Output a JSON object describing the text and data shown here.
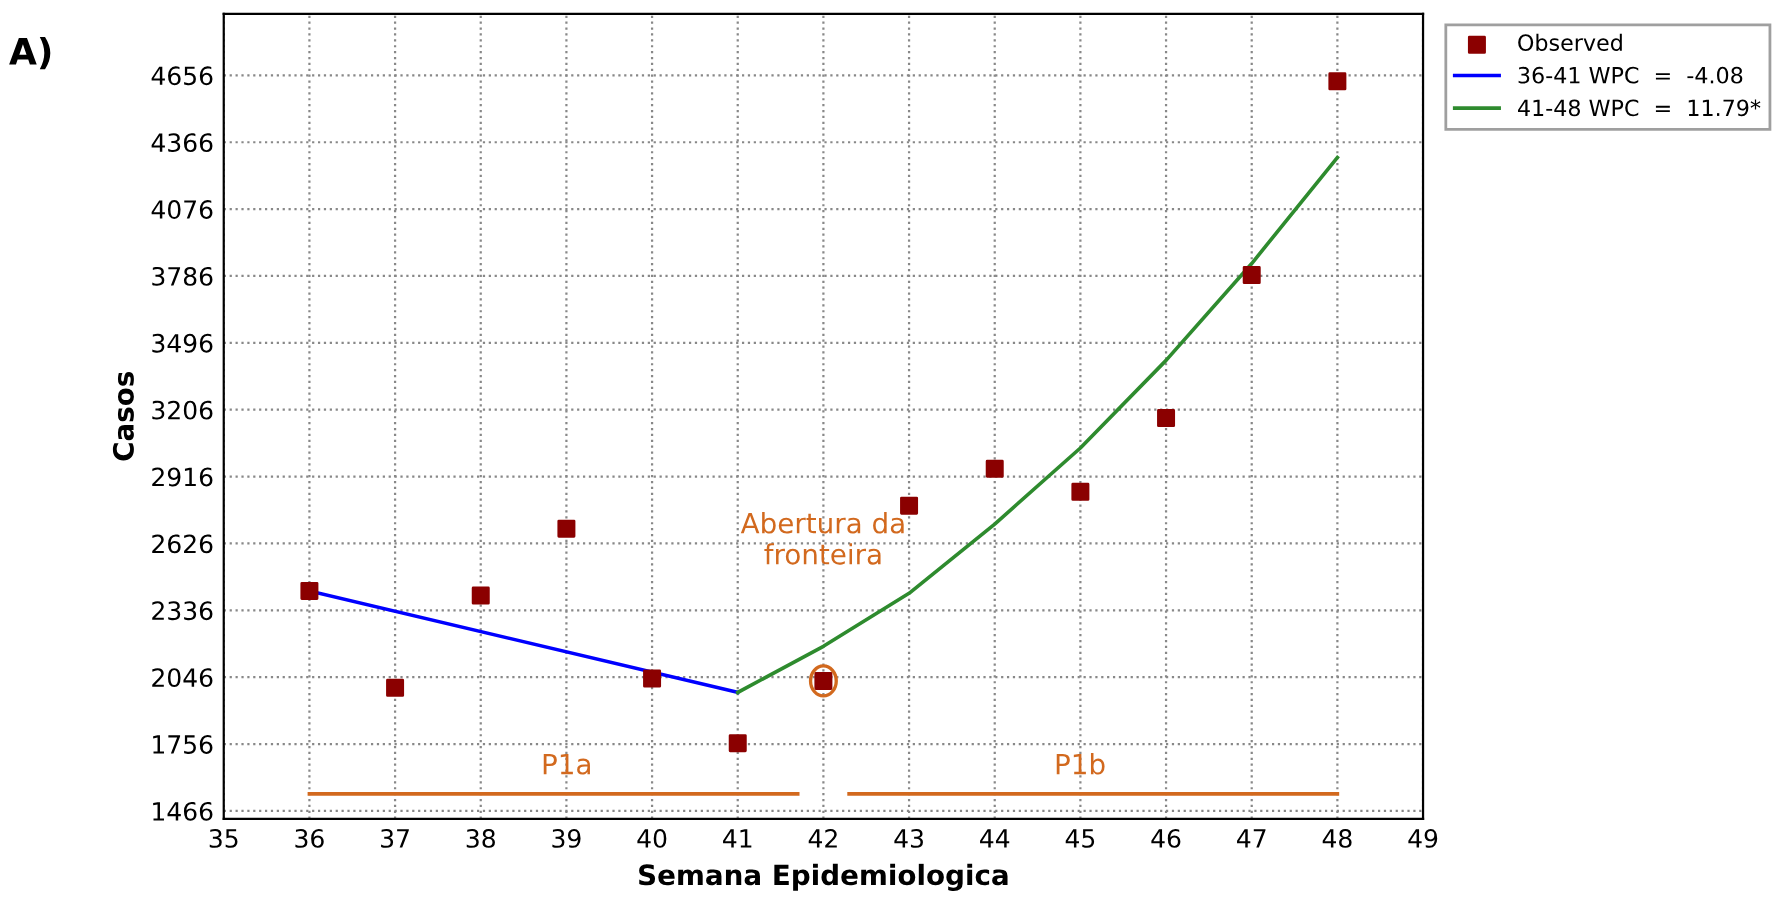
{
  "chart_data": {
    "type": "scatter",
    "title": "A)",
    "xlabel": "Semana Epidemiologica",
    "ylabel": "Casos",
    "xlim": [
      35,
      49
    ],
    "xticks": [
      35,
      36,
      37,
      38,
      39,
      40,
      41,
      42,
      43,
      44,
      45,
      46,
      47,
      48,
      49
    ],
    "ylim": [
      1432,
      4923
    ],
    "yticks": [
      1466,
      1756,
      2046,
      2336,
      2626,
      2916,
      3206,
      3496,
      3786,
      4076,
      4366,
      4656
    ],
    "grid": true,
    "legend": "top right",
    "marker": "square",
    "series": [
      {
        "name": "Observed",
        "color": "#8b0000",
        "x": [
          36,
          37,
          38,
          39,
          40,
          41,
          42,
          43,
          44,
          45,
          46,
          47,
          48
        ],
        "values": [
          2420,
          2000,
          2400,
          2690,
          2040,
          1760,
          2030,
          2790,
          2950,
          2850,
          3170,
          3790,
          4630
        ]
      },
      {
        "name": "36-41 WPC  =  -4.08",
        "type": "line",
        "color": "#0000ff",
        "marker": "none",
        "x": [
          36,
          41
        ],
        "values": [
          2420,
          1980
        ]
      },
      {
        "name": "41-48 WPC  =  11.79*",
        "type": "line",
        "color": "#2e8b2e",
        "marker": "none",
        "x": [
          41,
          42,
          43,
          44,
          45,
          46,
          47,
          48
        ],
        "values": [
          1980,
          2180,
          2410,
          2710,
          3040,
          3420,
          3840,
          4300
        ]
      },
      {
        "type": "line",
        "color": "#d2691e",
        "marker": "none",
        "x": [
          36,
          41.7
        ],
        "values": [
          1540,
          1540
        ]
      },
      {
        "type": "line",
        "color": "#d2691e",
        "marker": "none",
        "x": [
          42.3,
          48
        ],
        "values": [
          1540,
          1540
        ]
      }
    ],
    "annotations": [
      "Abertura da\nfronteira",
      "P1a",
      "P1b"
    ]
  }
}
